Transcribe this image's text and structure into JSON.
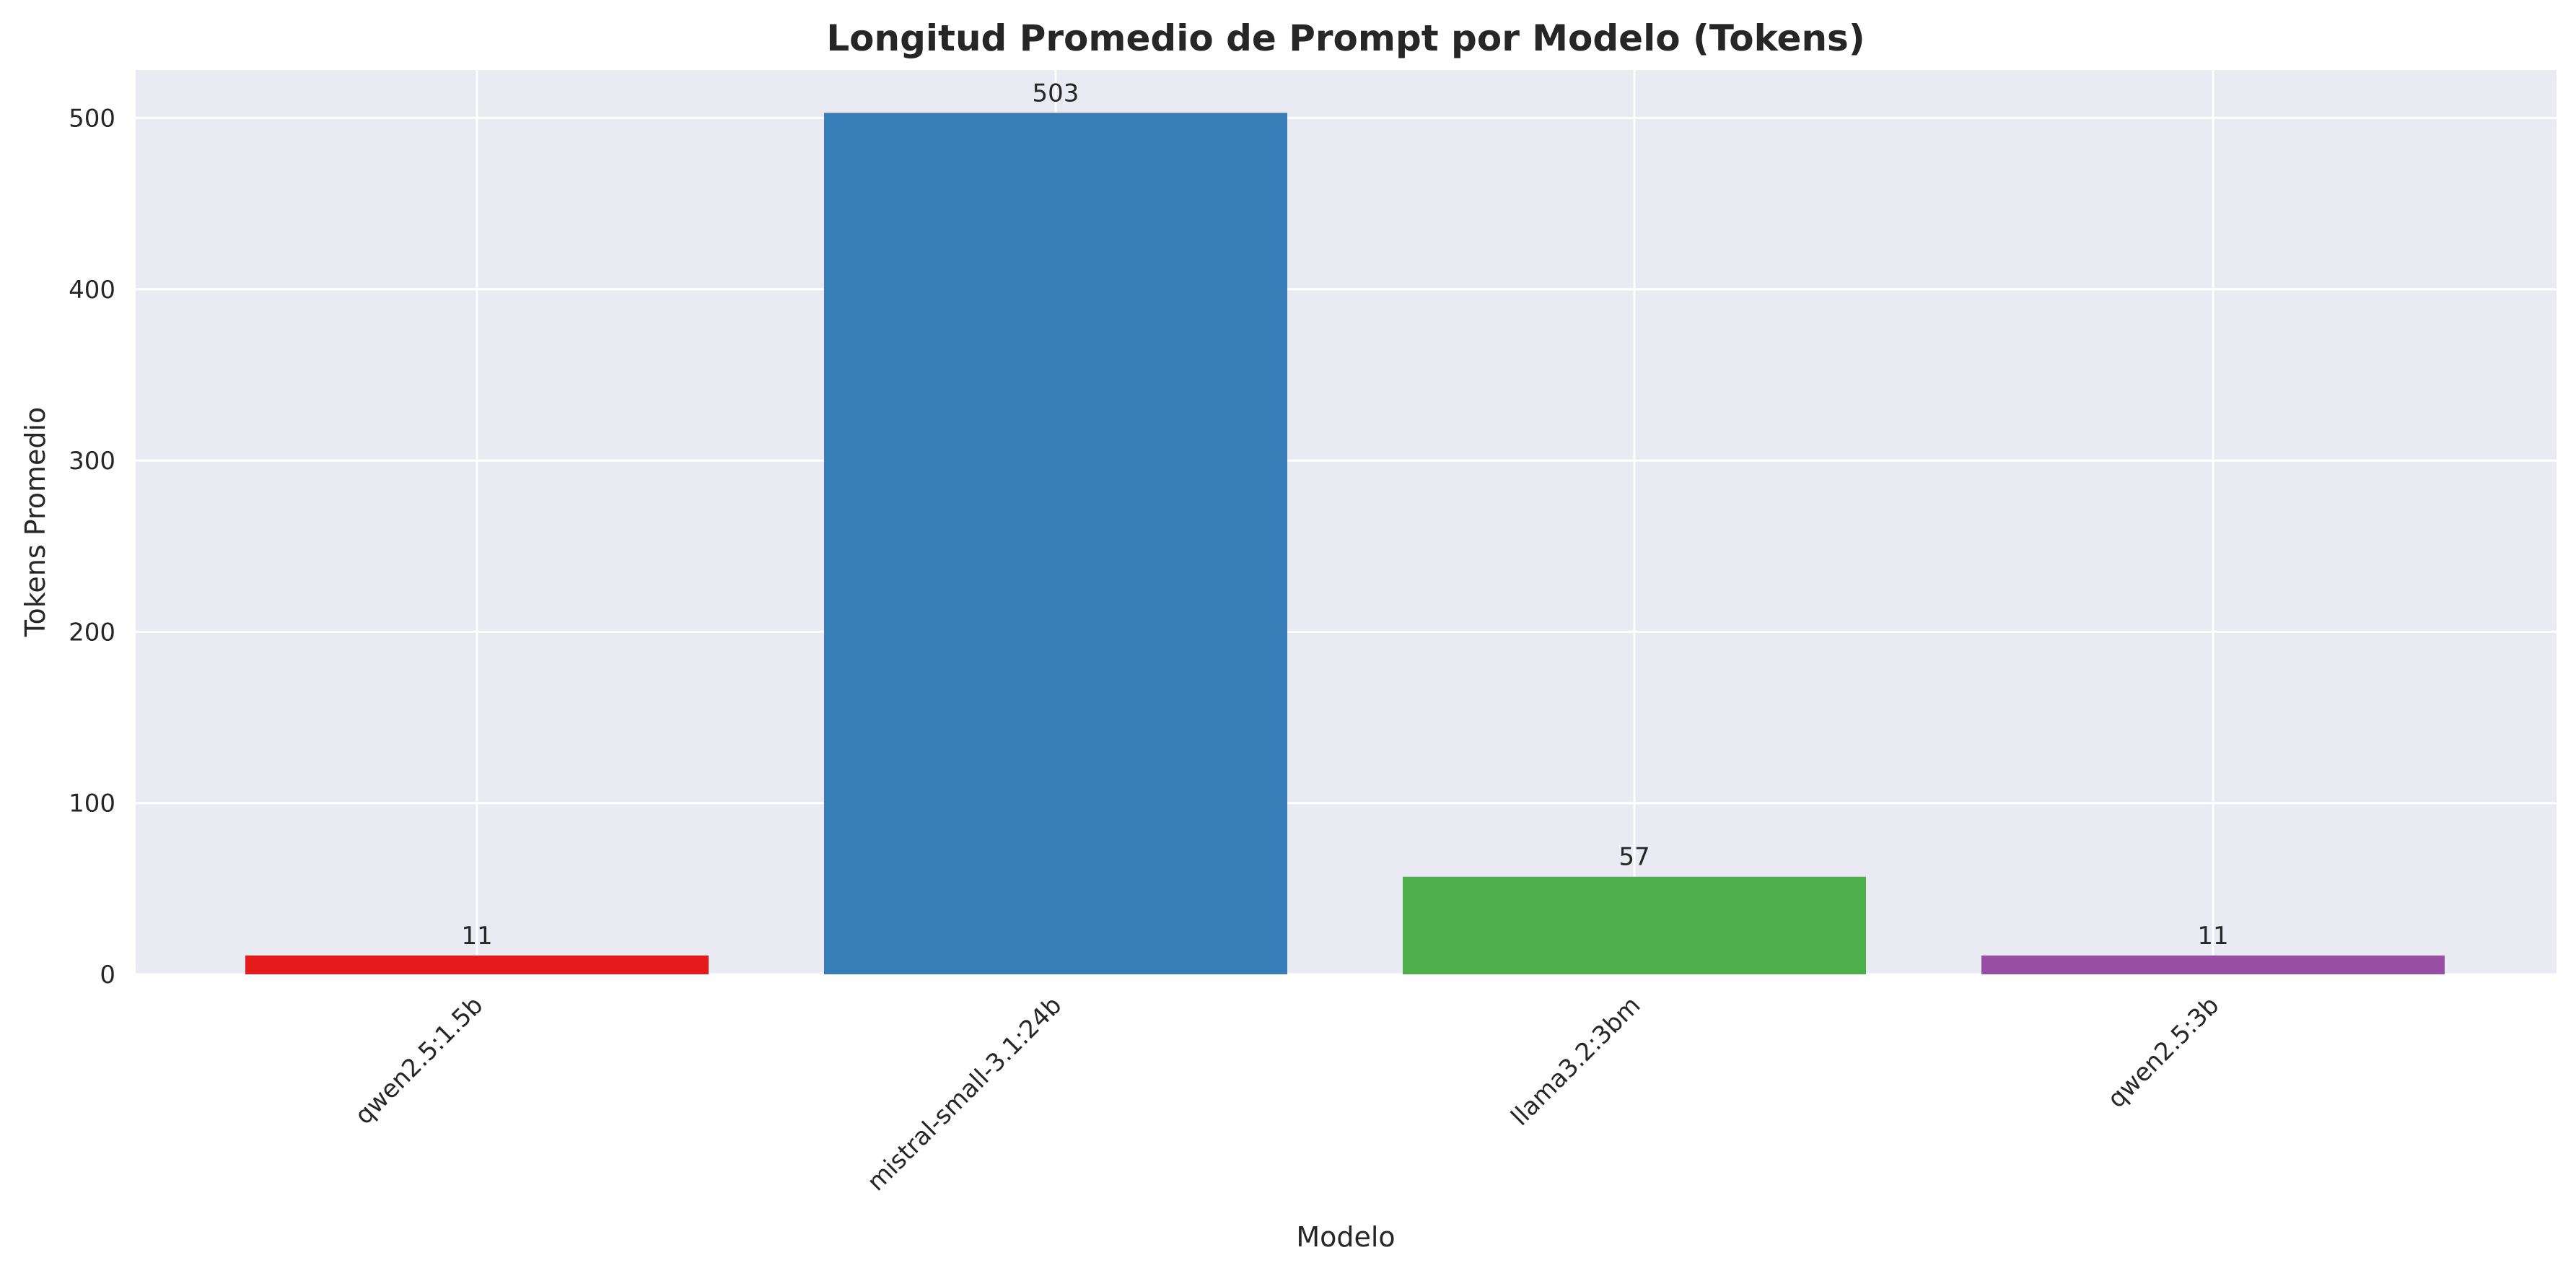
{
  "chart_data": {
    "type": "bar",
    "title": "Longitud Promedio de Prompt por Modelo (Tokens)",
    "xlabel": "Modelo",
    "ylabel": "Tokens Promedio",
    "categories": [
      "qwen2.5:1.5b",
      "mistral-small-3.1:24b",
      "llama3.2:3bm",
      "qwen2.5:3b"
    ],
    "values": [
      11,
      503,
      57,
      11
    ],
    "data_labels": [
      "11",
      "503",
      "57",
      "11"
    ],
    "colors": [
      "#e41a1c",
      "#377eb8",
      "#4daf4a",
      "#984ea3"
    ],
    "ylim": [
      0,
      528
    ],
    "yticks": [
      0,
      100,
      200,
      300,
      400,
      500
    ],
    "grid": true,
    "background_color": "#eaeaf2",
    "grid_color": "#ffffff"
  }
}
